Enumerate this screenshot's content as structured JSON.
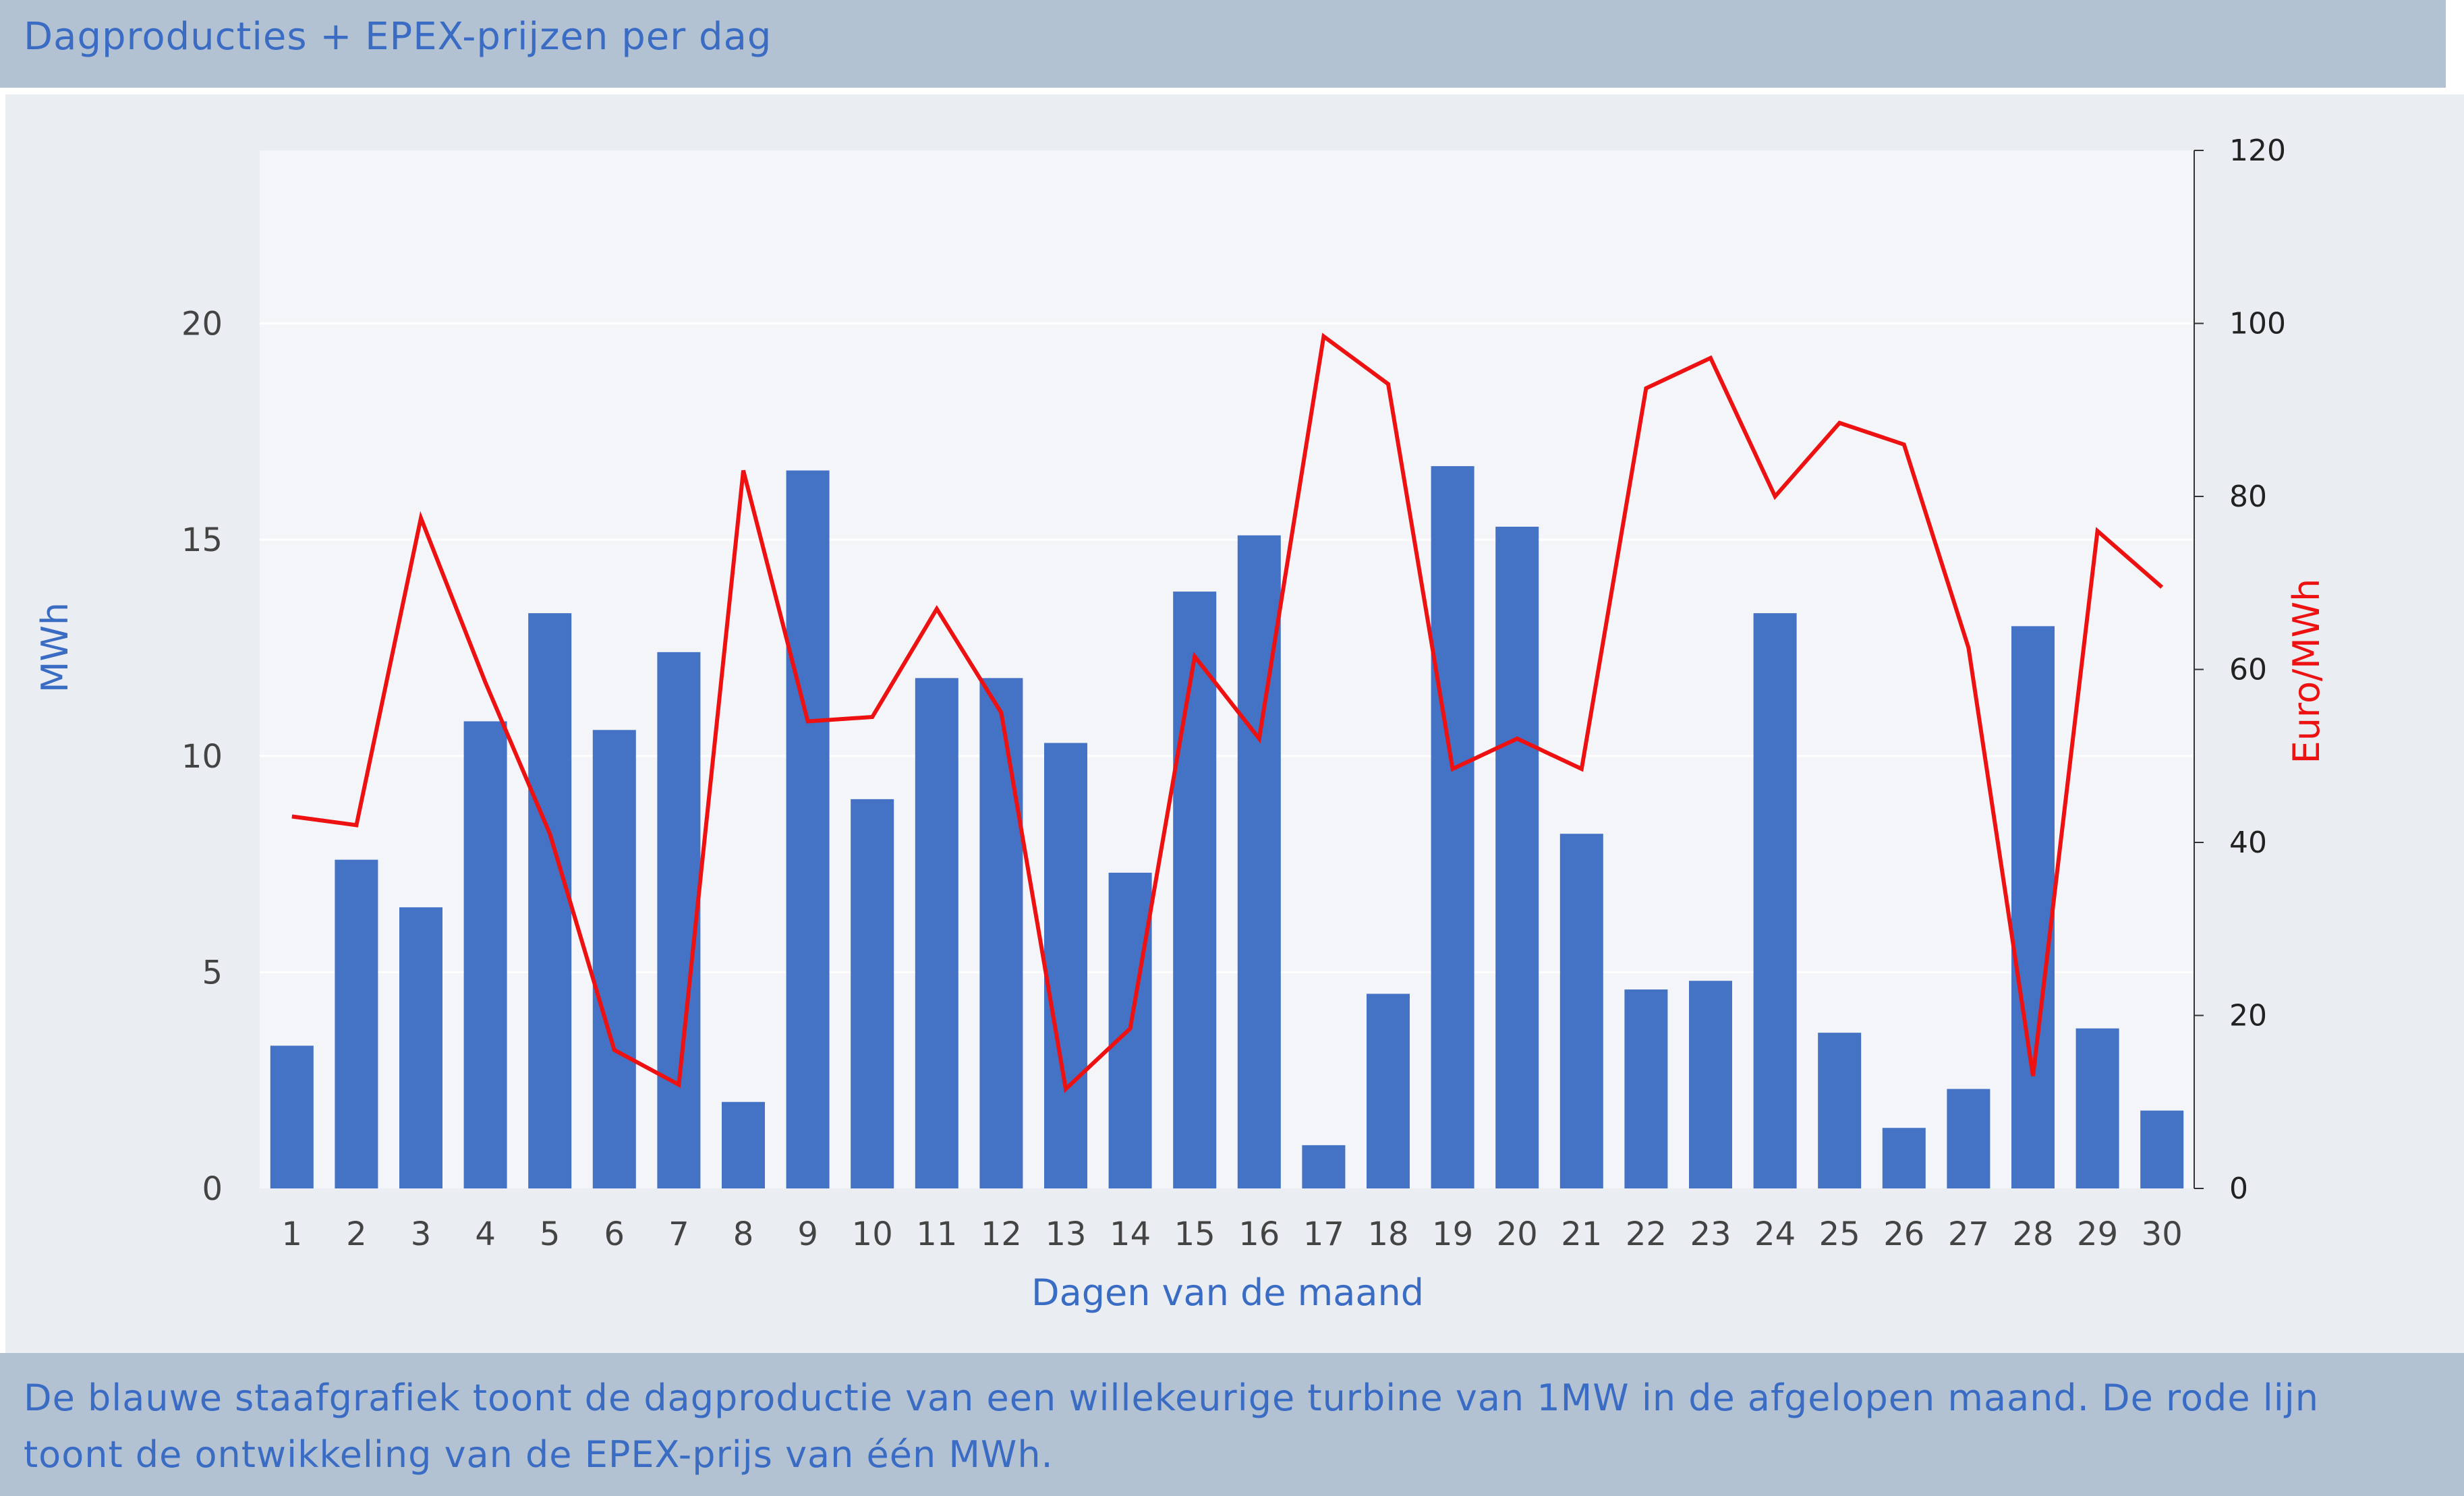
{
  "header": {
    "title": "Dagproducties + EPEX-prijzen per dag"
  },
  "footer": {
    "caption": "De blauwe staafgrafiek toont de dagproductie van een willekeurige turbine van 1MW in de afgelopen maand. De rode lijn toont de ontwikkeling van de EPEX-prijs van één MWh."
  },
  "colors": {
    "bar": "#4472c4",
    "line": "#ee1111",
    "left_axis_title": "#3a6cc4",
    "right_axis_title": "#ee1111",
    "plot_background": "#f4f5f9",
    "header_background": "#b3c2d3",
    "panel_background": "#eaedf1"
  },
  "chart_data": {
    "type": "bar",
    "title": "Dagproducties + EPEX-prijzen per dag",
    "xlabel": "Dagen van de maand",
    "ylabel": "MWh",
    "y2label": "Euro/MWh",
    "ylim": [
      0,
      24
    ],
    "y2lim": [
      0,
      120
    ],
    "yticks": [
      0,
      5,
      10,
      15,
      20
    ],
    "y2ticks": [
      0,
      20,
      40,
      60,
      80,
      100,
      120
    ],
    "grid": true,
    "categories": [
      "1",
      "2",
      "3",
      "4",
      "5",
      "6",
      "7",
      "8",
      "9",
      "10",
      "11",
      "12",
      "13",
      "14",
      "15",
      "16",
      "17",
      "18",
      "19",
      "20",
      "21",
      "22",
      "23",
      "24",
      "25",
      "26",
      "27",
      "28",
      "29",
      "30"
    ],
    "series": [
      {
        "type": "bar",
        "axis": "left",
        "values": [
          3.3,
          7.6,
          6.5,
          10.8,
          13.3,
          10.6,
          12.4,
          2.0,
          16.6,
          9.0,
          11.8,
          11.8,
          10.3,
          7.3,
          13.8,
          15.1,
          1.0,
          4.5,
          16.7,
          15.3,
          8.2,
          4.6,
          4.8,
          13.3,
          3.6,
          1.4,
          2.3,
          13.0,
          3.7,
          1.8
        ]
      },
      {
        "type": "line",
        "axis": "right",
        "values": [
          43,
          42,
          77.5,
          58.5,
          41,
          16,
          12,
          83,
          54,
          54.5,
          67,
          55,
          11.5,
          18.5,
          61.5,
          52,
          98.5,
          93,
          48.5,
          52,
          48.5,
          92.5,
          96,
          80,
          88.5,
          86,
          62.5,
          13,
          76,
          69.5
        ]
      }
    ]
  }
}
